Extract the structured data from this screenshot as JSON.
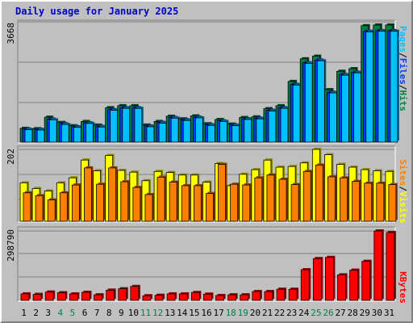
{
  "title": "Daily usage for January 2025",
  "colors": {
    "hits": "#008040",
    "files": "#0040ff",
    "pages": "#00c0ff",
    "visits": "#ffff00",
    "sites": "#ff8000",
    "kbytes": "#ff0000",
    "weekend_label": "#00804a",
    "weekday_label": "#000000",
    "title": "#0000cc"
  },
  "chart_data": [
    {
      "type": "bar",
      "name": "hits-files-pages",
      "ymax_label": "3668",
      "ylim": [
        0,
        3668
      ],
      "side_label": {
        "pages": "Pages",
        "files": "Files",
        "hits": "Hits",
        "sep": "/"
      },
      "categories": [
        "1",
        "2",
        "3",
        "4",
        "5",
        "6",
        "7",
        "8",
        "9",
        "10",
        "11",
        "12",
        "13",
        "14",
        "15",
        "16",
        "17",
        "18",
        "19",
        "20",
        "21",
        "22",
        "23",
        "24",
        "25",
        "26",
        "27",
        "28",
        "29",
        "30",
        "31"
      ],
      "weekend": [
        4,
        5,
        11,
        12,
        18,
        19,
        25,
        26
      ],
      "series": [
        {
          "name": "Hits",
          "values": [
            420,
            410,
            760,
            600,
            500,
            630,
            520,
            1050,
            1110,
            1110,
            520,
            630,
            790,
            710,
            800,
            560,
            690,
            550,
            750,
            770,
            1020,
            1110,
            1850,
            2540,
            2620,
            1600,
            2160,
            2240,
            3550,
            3570,
            3570
          ]
        },
        {
          "name": "Files",
          "values": [
            400,
            390,
            700,
            560,
            470,
            590,
            480,
            990,
            1050,
            1050,
            490,
            600,
            750,
            680,
            760,
            530,
            650,
            520,
            710,
            730,
            970,
            1050,
            1760,
            2420,
            2500,
            1520,
            2060,
            2130,
            3380,
            3400,
            3400
          ]
        },
        {
          "name": "Pages",
          "values": [
            380,
            370,
            680,
            540,
            450,
            570,
            460,
            970,
            1030,
            1030,
            470,
            580,
            730,
            660,
            740,
            510,
            630,
            500,
            690,
            710,
            950,
            1030,
            1740,
            2400,
            2480,
            1500,
            2040,
            2110,
            3360,
            3380,
            3380
          ]
        }
      ]
    },
    {
      "type": "bar",
      "name": "visits-sites",
      "ymax_label": "202",
      "ylim": [
        0,
        202
      ],
      "side_label": {
        "sites": "Sites",
        "visits": "Visits",
        "sep": "/"
      },
      "categories": [
        "1",
        "2",
        "3",
        "4",
        "5",
        "6",
        "7",
        "8",
        "9",
        "10",
        "11",
        "12",
        "13",
        "14",
        "15",
        "16",
        "17",
        "18",
        "19",
        "20",
        "21",
        "22",
        "23",
        "24",
        "25",
        "26",
        "27",
        "28",
        "29",
        "30",
        "31"
      ],
      "series": [
        {
          "name": "Visits",
          "values": [
            108,
            92,
            85,
            108,
            122,
            172,
            142,
            185,
            143,
            138,
            114,
            140,
            137,
            130,
            130,
            110,
            162,
            100,
            132,
            145,
            172,
            152,
            154,
            164,
            202,
            187,
            160,
            152,
            145,
            142,
            140
          ]
        },
        {
          "name": "Sites",
          "values": [
            80,
            72,
            60,
            80,
            102,
            150,
            104,
            150,
            111,
            95,
            75,
            124,
            110,
            100,
            100,
            78,
            160,
            104,
            102,
            122,
            130,
            118,
            103,
            140,
            158,
            125,
            122,
            112,
            107,
            107,
            103
          ]
        }
      ]
    },
    {
      "type": "bar",
      "name": "kbytes",
      "ymax_label": "298790",
      "ylim": [
        0,
        298790
      ],
      "side_label": {
        "kbytes": "KBytes"
      },
      "categories": [
        "1",
        "2",
        "3",
        "4",
        "5",
        "6",
        "7",
        "8",
        "9",
        "10",
        "11",
        "12",
        "13",
        "14",
        "15",
        "16",
        "17",
        "18",
        "19",
        "20",
        "21",
        "22",
        "23",
        "24",
        "25",
        "26",
        "27",
        "28",
        "29",
        "30",
        "31"
      ],
      "series": [
        {
          "name": "KBytes",
          "values": [
            28000,
            26000,
            36000,
            33000,
            28000,
            35000,
            24000,
            44000,
            50000,
            60000,
            20000,
            22000,
            28000,
            28000,
            34000,
            27000,
            21000,
            24000,
            24000,
            38000,
            38000,
            48000,
            48000,
            132000,
            180000,
            185000,
            110000,
            130000,
            168000,
            298790,
            292000
          ]
        }
      ]
    }
  ]
}
